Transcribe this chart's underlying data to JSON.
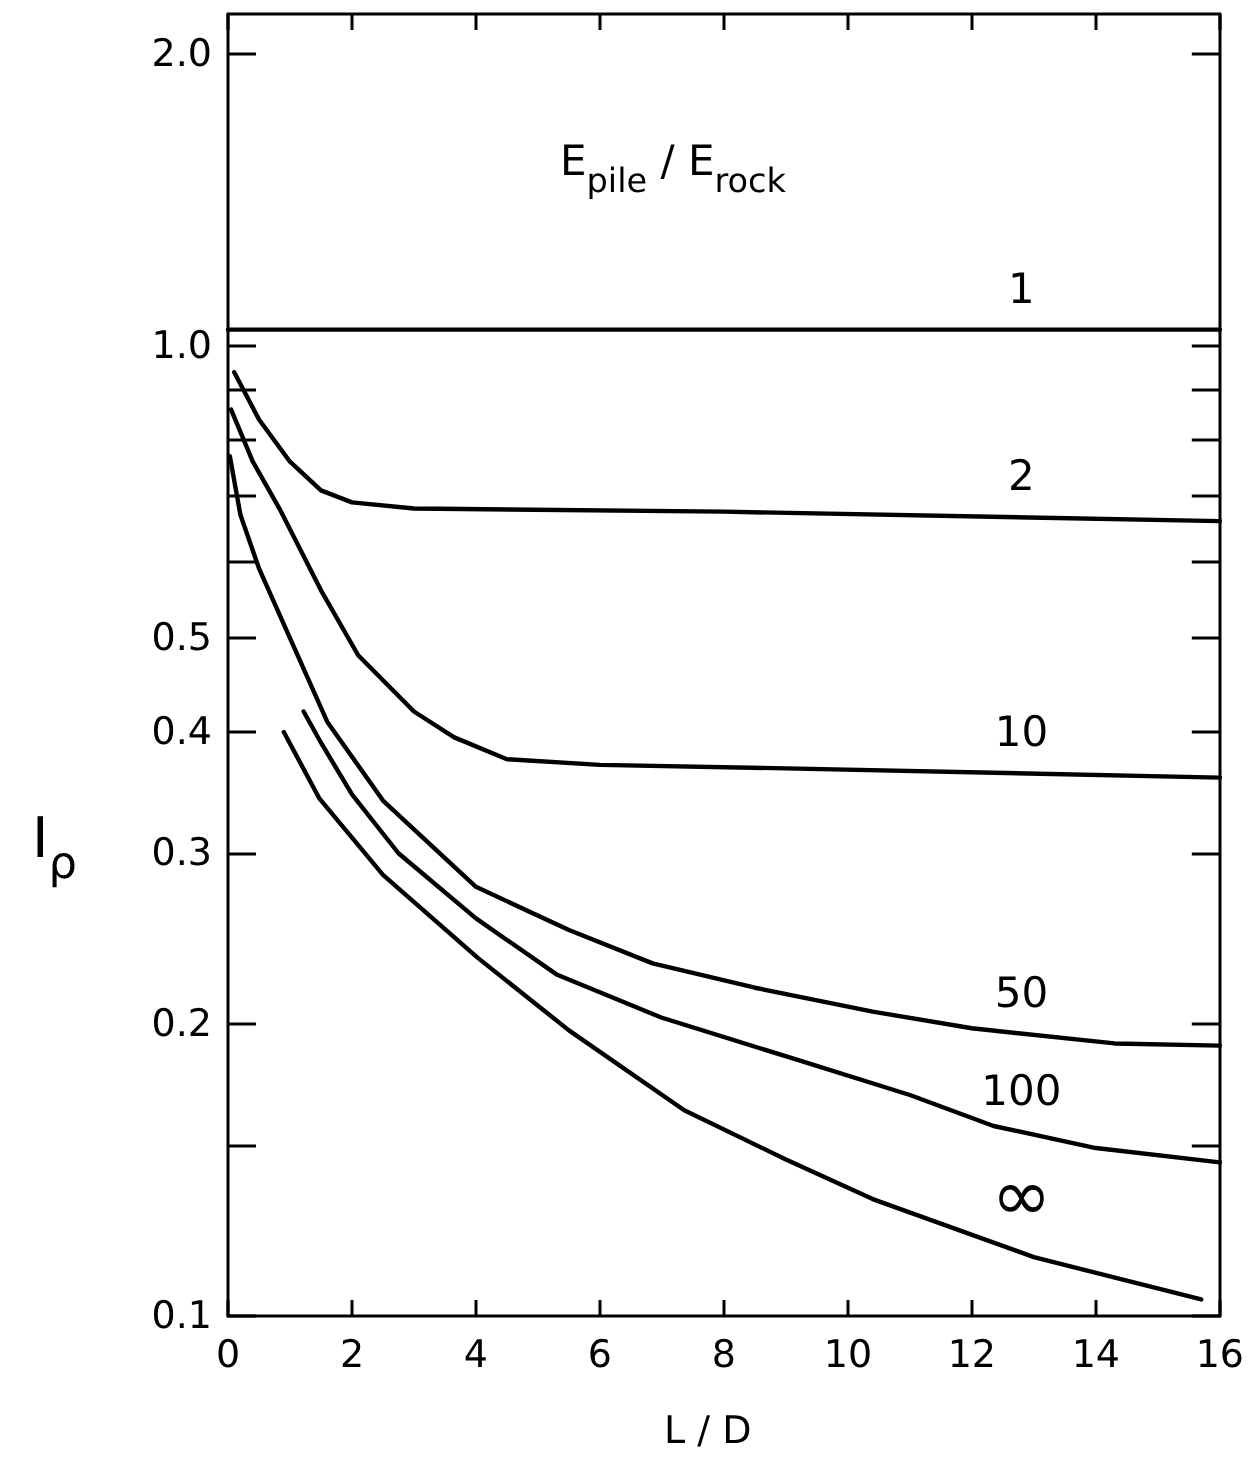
{
  "chart_data": {
    "type": "line",
    "xlabel": "L / D",
    "ylabel": "I$_{ρ}$",
    "legend_title": "E$_{pile}$ / E$_{rock}$",
    "log": "y",
    "marker": "none",
    "xlim": [
      0,
      16
    ],
    "xticks": [
      0,
      2,
      4,
      6,
      8,
      10,
      12,
      14,
      16
    ],
    "ylim": [
      0.1,
      2.2
    ],
    "yticks": [
      0.1,
      {
        "value": 0.15,
        "label": null
      },
      0.2,
      0.3,
      0.4,
      0.5,
      {
        "value": 0.6,
        "label": null
      },
      {
        "value": 0.7,
        "label": null
      },
      {
        "value": 0.8,
        "label": null
      },
      {
        "value": 0.9,
        "label": null
      },
      {
        "value": 1,
        "label": "1.0"
      },
      {
        "value": 2,
        "label": "2.0"
      }
    ],
    "series": [
      {
        "name": "1",
        "color": "#000000",
        "x": [
          0,
          16
        ],
        "values": [
          1.04,
          1.04
        ]
      },
      {
        "name": "2",
        "color": "#000000",
        "x": [
          0.1,
          0.5,
          1,
          1.5,
          2,
          3,
          8,
          16
        ],
        "values": [
          0.94,
          0.84,
          0.76,
          0.71,
          0.69,
          0.68,
          0.675,
          0.66
        ]
      },
      {
        "name": "10",
        "color": "#000000",
        "x": [
          0.05,
          0.4,
          0.83,
          1.5,
          2.1,
          3,
          3.65,
          4.5,
          6,
          9,
          16
        ],
        "values": [
          0.86,
          0.76,
          0.68,
          0.56,
          0.48,
          0.42,
          0.395,
          0.375,
          0.37,
          0.367,
          0.359
        ]
      },
      {
        "name": "50",
        "color": "#000000",
        "x": [
          0.03,
          0.2,
          0.5,
          1,
          1.6,
          2.5,
          4,
          5.5,
          6.85,
          8.5,
          10.4,
          12,
          14.3,
          16
        ],
        "values": [
          0.77,
          0.67,
          0.59,
          0.5,
          0.41,
          0.34,
          0.277,
          0.25,
          0.231,
          0.218,
          0.206,
          0.198,
          0.191,
          0.19
        ]
      },
      {
        "name": "100",
        "color": "#000000",
        "x": [
          1.22,
          1.5,
          2,
          2.75,
          4,
          5.3,
          7,
          9.15,
          11,
          12.35,
          14,
          16
        ],
        "values": [
          0.42,
          0.39,
          0.345,
          0.3,
          0.257,
          0.225,
          0.203,
          0.184,
          0.169,
          0.157,
          0.149,
          0.144
        ]
      },
      {
        "name": "∞",
        "color": "#000000",
        "x": [
          0.9,
          1.47,
          2.5,
          4.03,
          5.5,
          7.36,
          9,
          10.4,
          13,
          15.7
        ],
        "values": [
          0.4,
          0.342,
          0.285,
          0.234,
          0.197,
          0.163,
          0.145,
          0.132,
          0.115,
          0.104
        ]
      }
    ]
  }
}
